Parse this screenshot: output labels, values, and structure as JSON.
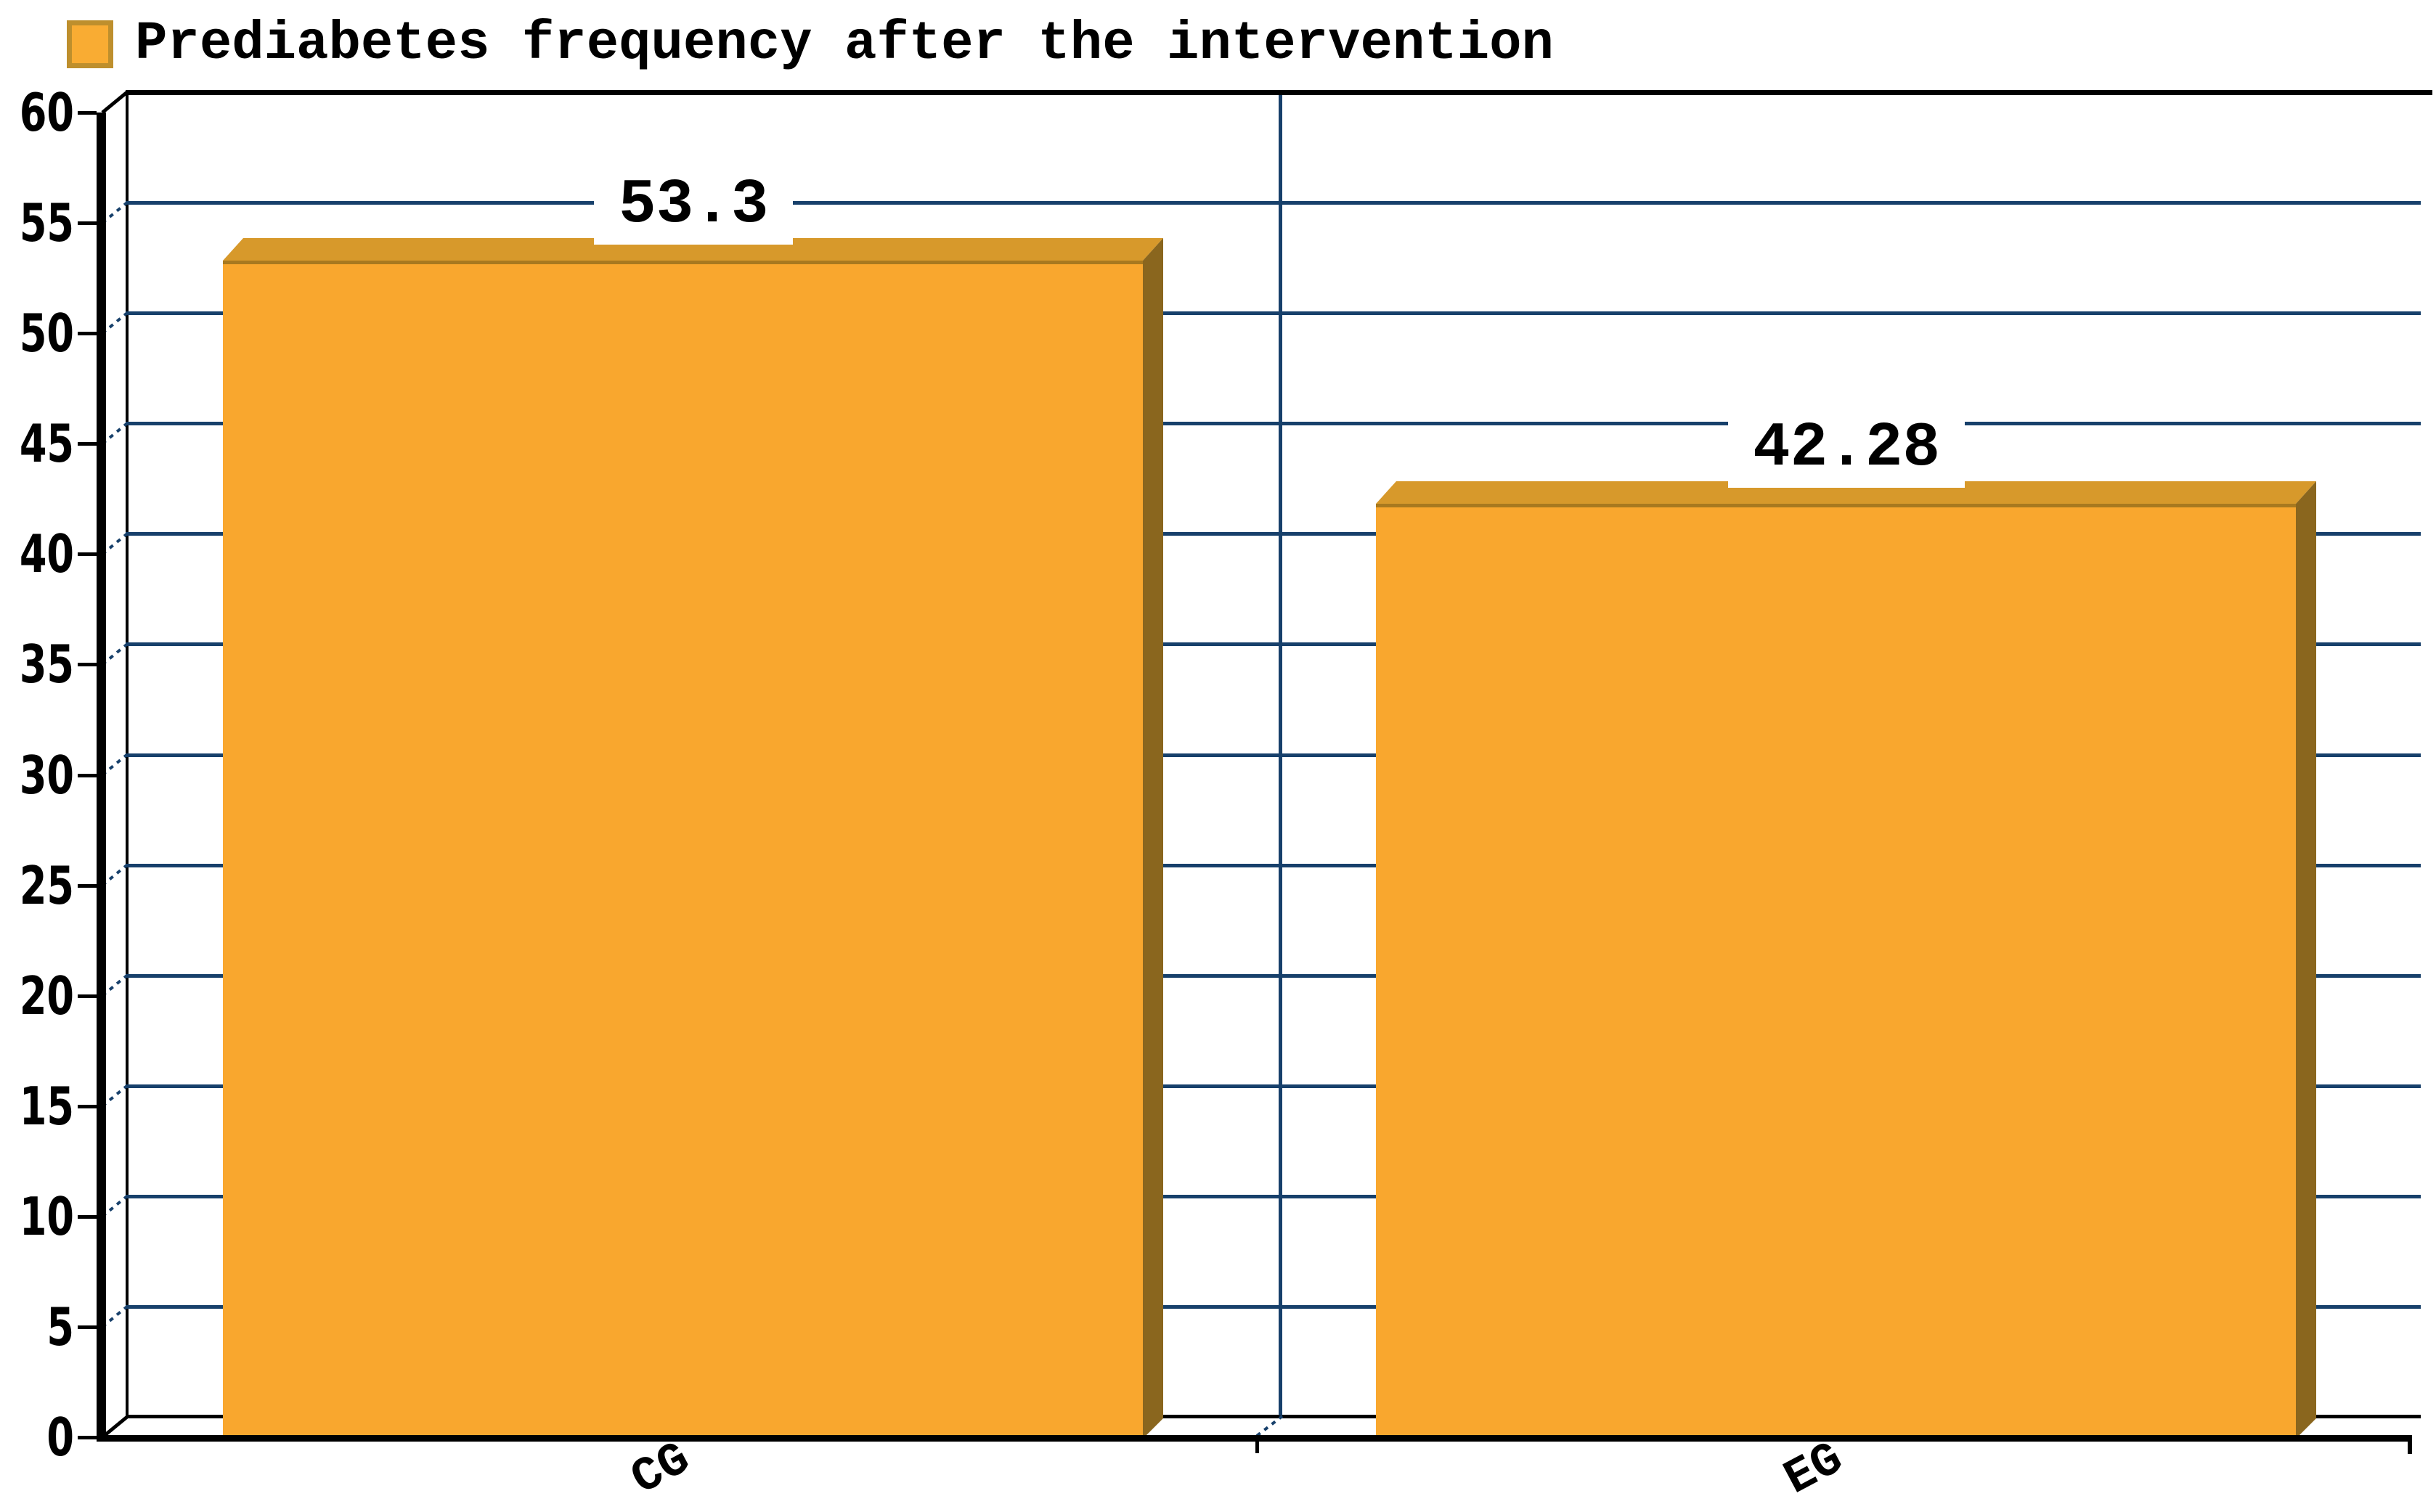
{
  "legend": {
    "label": "Prediabetes frequency after the intervention",
    "swatch_color": "#f9ac33",
    "swatch_border_color": "#be8f2d",
    "position": "top-left"
  },
  "chart_data": {
    "type": "bar",
    "title": "Prediabetes frequency after the intervention",
    "categories": [
      "CG",
      "EG"
    ],
    "values": [
      53.3,
      42.28
    ],
    "value_labels": [
      "53.3",
      "42.28"
    ],
    "series": [
      {
        "name": "Prediabetes frequency after the intervention",
        "values": [
          53.3,
          42.28
        ]
      }
    ],
    "xlabel": "",
    "ylabel": "",
    "ylim": [
      0,
      60
    ],
    "ytick_step": 5,
    "yticks": [
      0,
      5,
      10,
      15,
      20,
      25,
      30,
      35,
      40,
      45,
      50,
      55,
      60
    ],
    "grid": "horizontal",
    "style": "3d-column",
    "legend_position": "top-left",
    "colors": {
      "bar_front": "#f9a72e",
      "bar_top": "#d7992b",
      "bar_side": "#8a661e",
      "bar_edge": "#a8791f",
      "gridline": "#17406b",
      "axis": "#000000",
      "background": "#ffffff",
      "label_text": "#000000"
    }
  }
}
